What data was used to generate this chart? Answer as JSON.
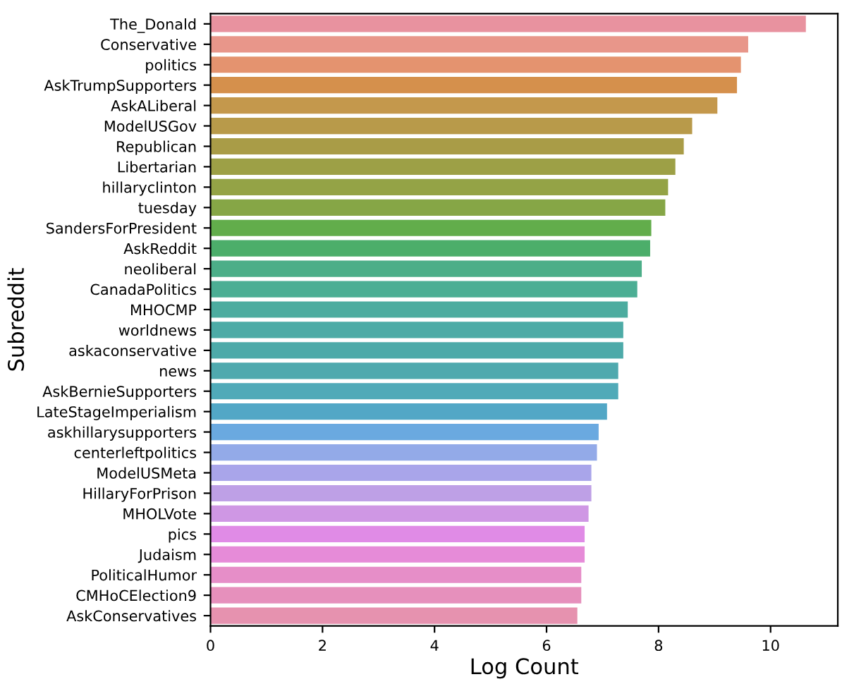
{
  "chart_data": {
    "type": "bar",
    "orientation": "horizontal",
    "xlabel": "Log Count",
    "ylabel": "Subreddit",
    "categories": [
      "The_Donald",
      "Conservative",
      "politics",
      "AskTrumpSupporters",
      "AskALiberal",
      "ModelUSGov",
      "Republican",
      "Libertarian",
      "hillaryclinton",
      "tuesday",
      "SandersForPresident",
      "AskReddit",
      "neoliberal",
      "CanadaPolitics",
      "MHOCMP",
      "worldnews",
      "askaconservative",
      "news",
      "AskBernieSupporters",
      "LateStageImperialism",
      "askhillarysupporters",
      "centerleftpolitics",
      "ModelUSMeta",
      "HillaryForPrison",
      "MHOLVote",
      "pics",
      "Judaism",
      "PoliticalHumor",
      "CMHoCElection9",
      "AskConservatives"
    ],
    "values": [
      10.63,
      9.6,
      9.47,
      9.4,
      9.05,
      8.6,
      8.45,
      8.3,
      8.17,
      8.12,
      7.87,
      7.85,
      7.7,
      7.62,
      7.45,
      7.37,
      7.37,
      7.28,
      7.28,
      7.08,
      6.93,
      6.9,
      6.8,
      6.8,
      6.75,
      6.68,
      6.68,
      6.62,
      6.62,
      6.55
    ],
    "colors": [
      "#e8929f",
      "#e8968a",
      "#e4936f",
      "#d5904c",
      "#c4984c",
      "#b89a4a",
      "#a99c47",
      "#9da046",
      "#94a346",
      "#86a646",
      "#62ad4b",
      "#4cae6a",
      "#4cae88",
      "#4cae94",
      "#4cac9f",
      "#4daba6",
      "#4daaa9",
      "#4fa9ae",
      "#50aab8",
      "#52a7c6",
      "#6aa9e0",
      "#93aae8",
      "#a9a5ea",
      "#bea0e6",
      "#cf97e4",
      "#e08be6",
      "#e68bd8",
      "#e68ec8",
      "#e690bc",
      "#e692af"
    ],
    "xlim": [
      0,
      11.2
    ],
    "xticks": [
      0,
      2,
      4,
      6,
      8,
      10
    ],
    "grid": false,
    "legend": false
  }
}
